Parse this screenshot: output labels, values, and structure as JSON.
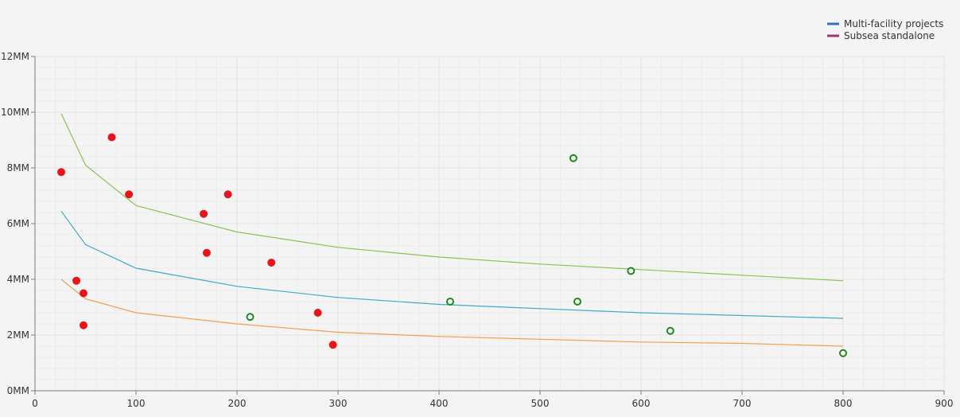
{
  "chart_data": {
    "type": "scatter",
    "title": "",
    "xlabel": "",
    "ylabel": "",
    "xlim": [
      0,
      900
    ],
    "ylim": [
      0,
      12000000
    ],
    "x_ticks": [
      0,
      100,
      200,
      300,
      400,
      500,
      600,
      700,
      800,
      900
    ],
    "x_tick_labels": [
      "0",
      "100",
      "200",
      "300",
      "400",
      "500",
      "600",
      "700",
      "800",
      "900"
    ],
    "y_ticks": [
      0,
      2000000,
      4000000,
      6000000,
      8000000,
      10000000,
      12000000
    ],
    "y_tick_labels": [
      "0MM",
      "2MM",
      "4MM",
      "6MM",
      "8MM",
      "10MM",
      "12MM"
    ],
    "grid": true,
    "legend_position": "top-right",
    "legend": [
      {
        "label": "Multi-facility projects",
        "color": "#3a6fb5"
      },
      {
        "label": "Subsea standalone",
        "color": "#a0376e"
      }
    ],
    "series": [
      {
        "marker": "filled-circle",
        "color": "#e8141a",
        "points": [
          [
            26,
            7850000
          ],
          [
            41,
            3950000
          ],
          [
            48,
            3500000
          ],
          [
            48,
            2350000
          ],
          [
            76,
            9100000
          ],
          [
            93,
            7050000
          ],
          [
            167,
            6350000
          ],
          [
            170,
            4950000
          ],
          [
            191,
            7050000
          ],
          [
            234,
            4600000
          ],
          [
            280,
            2800000
          ],
          [
            295,
            1650000
          ]
        ]
      },
      {
        "marker": "open-circle",
        "color": "#1a8a1a",
        "points": [
          [
            213,
            2650000
          ],
          [
            411,
            3200000
          ],
          [
            533,
            8350000
          ],
          [
            537,
            3200000
          ],
          [
            590,
            4300000
          ],
          [
            629,
            2150000
          ],
          [
            800,
            1350000
          ]
        ]
      }
    ],
    "curves": [
      {
        "color": "#8cc152",
        "points": [
          [
            26,
            9950000
          ],
          [
            50,
            8100000
          ],
          [
            100,
            6650000
          ],
          [
            200,
            5700000
          ],
          [
            300,
            5150000
          ],
          [
            400,
            4800000
          ],
          [
            500,
            4550000
          ],
          [
            600,
            4350000
          ],
          [
            700,
            4150000
          ],
          [
            800,
            3950000
          ]
        ]
      },
      {
        "color": "#3fa9c9",
        "points": [
          [
            26,
            6450000
          ],
          [
            50,
            5250000
          ],
          [
            100,
            4400000
          ],
          [
            200,
            3750000
          ],
          [
            300,
            3350000
          ],
          [
            400,
            3100000
          ],
          [
            500,
            2950000
          ],
          [
            600,
            2800000
          ],
          [
            700,
            2700000
          ],
          [
            800,
            2600000
          ]
        ]
      },
      {
        "color": "#f0a04b",
        "points": [
          [
            26,
            4000000
          ],
          [
            50,
            3300000
          ],
          [
            100,
            2800000
          ],
          [
            200,
            2400000
          ],
          [
            300,
            2100000
          ],
          [
            400,
            1950000
          ],
          [
            500,
            1850000
          ],
          [
            600,
            1750000
          ],
          [
            700,
            1700000
          ],
          [
            800,
            1600000
          ]
        ]
      }
    ]
  }
}
